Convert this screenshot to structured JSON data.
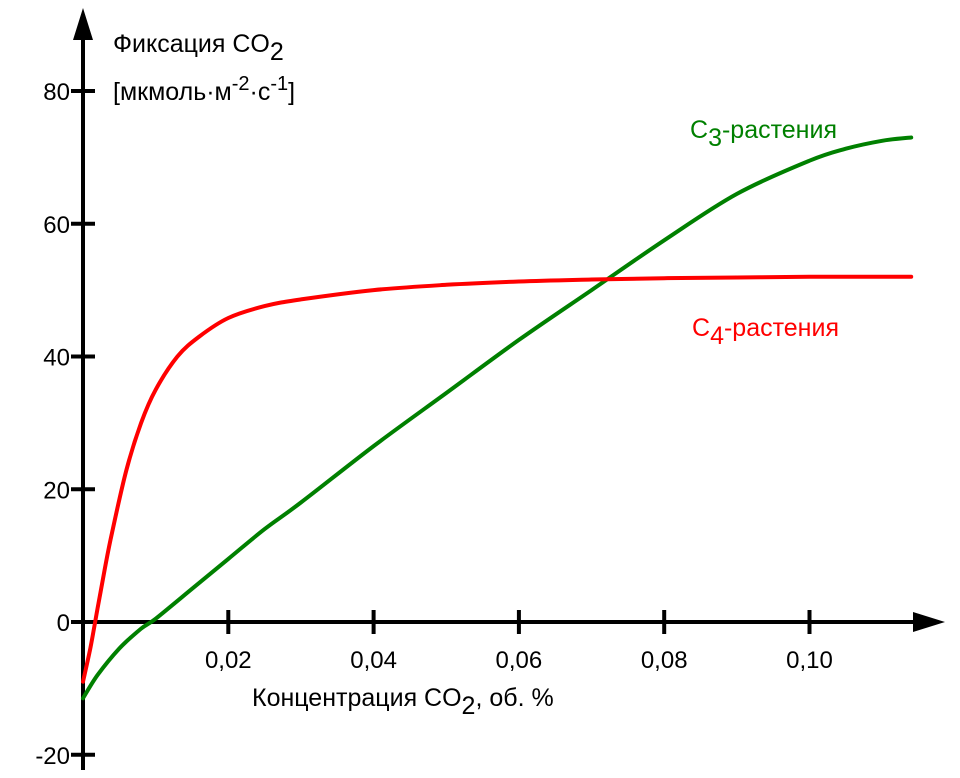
{
  "chart_data": {
    "type": "line",
    "ylabel": {
      "line1": {
        "text": "Фиксация CO",
        "sub": "2"
      },
      "line2": {
        "prefix": "[мкмоль·м",
        "sup1": "-2",
        "mid": "·с",
        "sup2": "-1",
        "suffix": "]"
      }
    },
    "xlabel": {
      "text": "Концентрация CO",
      "sub": "2",
      "suffix": ", об. %"
    },
    "xlim": [
      0,
      0.118
    ],
    "ylim": [
      -22,
      88
    ],
    "x_ticks": [
      {
        "value": 0.02,
        "label": "0,02"
      },
      {
        "value": 0.04,
        "label": "0,04"
      },
      {
        "value": 0.06,
        "label": "0,06"
      },
      {
        "value": 0.08,
        "label": "0,08"
      },
      {
        "value": 0.1,
        "label": "0,10"
      }
    ],
    "y_ticks": [
      {
        "value": -20,
        "label": "-20"
      },
      {
        "value": 0,
        "label": "0"
      },
      {
        "value": 20,
        "label": "20"
      },
      {
        "value": 40,
        "label": "40"
      },
      {
        "value": 60,
        "label": "60"
      },
      {
        "value": 80,
        "label": "80"
      }
    ],
    "grid": false,
    "legend": "inline labels near curves",
    "series": [
      {
        "name": "C3-растения",
        "label": {
          "base": "C",
          "sub": "3",
          "rest": "-растения"
        },
        "color": "#008000",
        "x": [
          0,
          0.002,
          0.005,
          0.008,
          0.01,
          0.015,
          0.02,
          0.025,
          0.03,
          0.04,
          0.05,
          0.06,
          0.07,
          0.08,
          0.09,
          0.1,
          0.105,
          0.11,
          0.114
        ],
        "y": [
          -11.5,
          -8,
          -4,
          -1,
          0.5,
          5,
          9.5,
          14,
          18,
          26.5,
          34.5,
          42.5,
          50,
          57.5,
          64.5,
          69.5,
          71.3,
          72.5,
          73
        ]
      },
      {
        "name": "C4-растения",
        "label": {
          "base": "C",
          "sub": "4",
          "rest": "-растения"
        },
        "color": "#ff0000",
        "x": [
          0,
          0.001,
          0.002,
          0.003,
          0.004,
          0.006,
          0.008,
          0.01,
          0.013,
          0.016,
          0.02,
          0.025,
          0.03,
          0.04,
          0.05,
          0.06,
          0.07,
          0.08,
          0.09,
          0.1,
          0.114
        ],
        "y": [
          -9,
          -4,
          2,
          8,
          13.5,
          23,
          30,
          35,
          40,
          43,
          45.8,
          47.6,
          48.6,
          50,
          50.8,
          51.3,
          51.6,
          51.8,
          51.9,
          52,
          52
        ]
      }
    ]
  }
}
